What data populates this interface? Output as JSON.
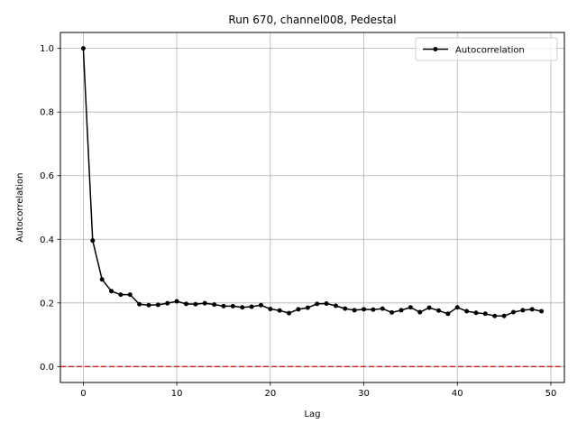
{
  "chart_data": {
    "type": "line",
    "title": "Run 670, channel008, Pedestal",
    "xlabel": "Lag",
    "ylabel": "Autocorrelation",
    "xlim": [
      -2.45,
      51.45
    ],
    "ylim": [
      -0.05,
      1.05
    ],
    "xticks": [
      0,
      10,
      20,
      30,
      40,
      50
    ],
    "xtick_labels": [
      "0",
      "10",
      "20",
      "30",
      "40",
      "50"
    ],
    "yticks": [
      0.0,
      0.2,
      0.4,
      0.6,
      0.8,
      1.0
    ],
    "ytick_labels": [
      "0.0",
      "0.2",
      "0.4",
      "0.6",
      "0.8",
      "1.0"
    ],
    "grid": true,
    "legend_position": "top-right",
    "colors": {
      "series": "#000000",
      "reference": "#d62728",
      "grid": "#b0b0b0"
    },
    "reference_line": {
      "y": 0.0,
      "style": "dashed"
    },
    "series": [
      {
        "name": "Autocorrelation",
        "x": [
          0,
          1,
          2,
          3,
          4,
          5,
          6,
          7,
          8,
          9,
          10,
          11,
          12,
          13,
          14,
          15,
          16,
          17,
          18,
          19,
          20,
          21,
          22,
          23,
          24,
          25,
          26,
          27,
          28,
          29,
          30,
          31,
          32,
          33,
          34,
          35,
          36,
          37,
          38,
          39,
          40,
          41,
          42,
          43,
          44,
          45,
          46,
          47,
          48,
          49
        ],
        "values": [
          1.0,
          0.396,
          0.274,
          0.237,
          0.226,
          0.226,
          0.196,
          0.193,
          0.194,
          0.199,
          0.205,
          0.197,
          0.196,
          0.199,
          0.195,
          0.19,
          0.19,
          0.186,
          0.188,
          0.193,
          0.181,
          0.176,
          0.168,
          0.18,
          0.185,
          0.197,
          0.198,
          0.191,
          0.182,
          0.177,
          0.18,
          0.179,
          0.182,
          0.17,
          0.177,
          0.186,
          0.171,
          0.185,
          0.176,
          0.166,
          0.186,
          0.174,
          0.169,
          0.166,
          0.159,
          0.159,
          0.171,
          0.177,
          0.18,
          0.174
        ]
      }
    ]
  }
}
